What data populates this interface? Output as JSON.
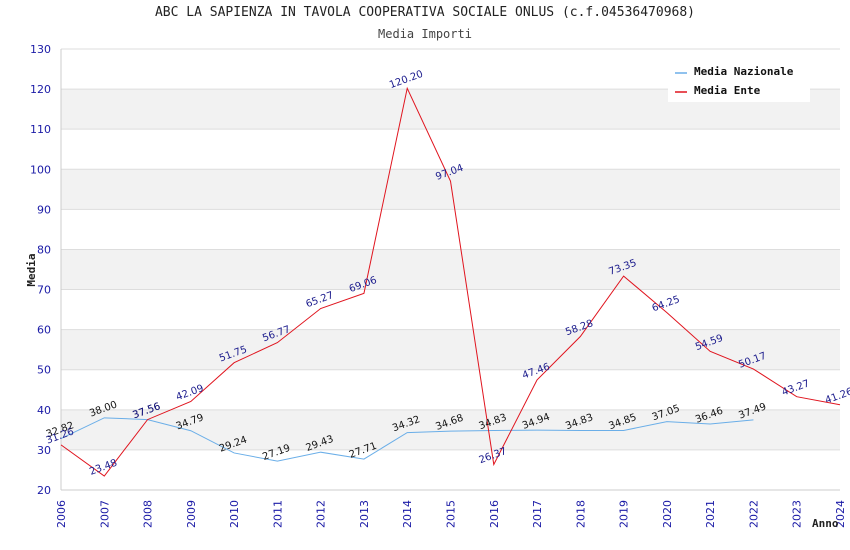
{
  "chart_data": {
    "type": "line",
    "title": "ABC LA SAPIENZA IN TAVOLA COOPERATIVA SOCIALE ONLUS (c.f.04536470968)",
    "subtitle": "Media Importi",
    "xlabel": "Anno",
    "ylabel": "Media",
    "ylim": [
      20,
      130
    ],
    "yticks": [
      20,
      30,
      40,
      50,
      60,
      70,
      80,
      90,
      100,
      110,
      120,
      130
    ],
    "x": [
      "2006",
      "2007",
      "2008",
      "2009",
      "2010",
      "2011",
      "2012",
      "2013",
      "2014",
      "2015",
      "2016",
      "2017",
      "2018",
      "2019",
      "2020",
      "2021",
      "2022",
      "2023",
      "2024"
    ],
    "legend_position": "top-right",
    "series": [
      {
        "name": "Media Nazionale",
        "color": "#6aaee8",
        "values": [
          32.82,
          38.0,
          37.56,
          34.79,
          29.24,
          27.19,
          29.43,
          27.71,
          34.32,
          34.68,
          34.83,
          34.94,
          34.83,
          34.85,
          37.05,
          36.46,
          37.49,
          null,
          null
        ],
        "labels": [
          "32.82",
          "38.00",
          "37.56",
          "34.79",
          "29.24",
          "27.19",
          "29.43",
          "27.71",
          "34.32",
          "34.68",
          "34.83",
          "34.94",
          "34.83",
          "34.85",
          "37.05",
          "36.46",
          "37.49",
          null,
          null
        ]
      },
      {
        "name": "Media Ente",
        "color": "#e0141e",
        "values": [
          31.26,
          23.48,
          37.56,
          42.09,
          51.75,
          56.77,
          65.27,
          69.06,
          120.2,
          97.04,
          26.37,
          47.46,
          58.28,
          73.35,
          64.25,
          54.59,
          50.17,
          43.27,
          41.26
        ],
        "labels": [
          "31.26",
          "23.48",
          "37.56",
          "42.09",
          "51.75",
          "56.77",
          "65.27",
          "69.06",
          "120.20",
          "97.04",
          "26.37",
          "47.46",
          "58.28",
          "73.35",
          "64.25",
          "54.59",
          "50.17",
          "43.27",
          "41.26"
        ]
      }
    ]
  }
}
